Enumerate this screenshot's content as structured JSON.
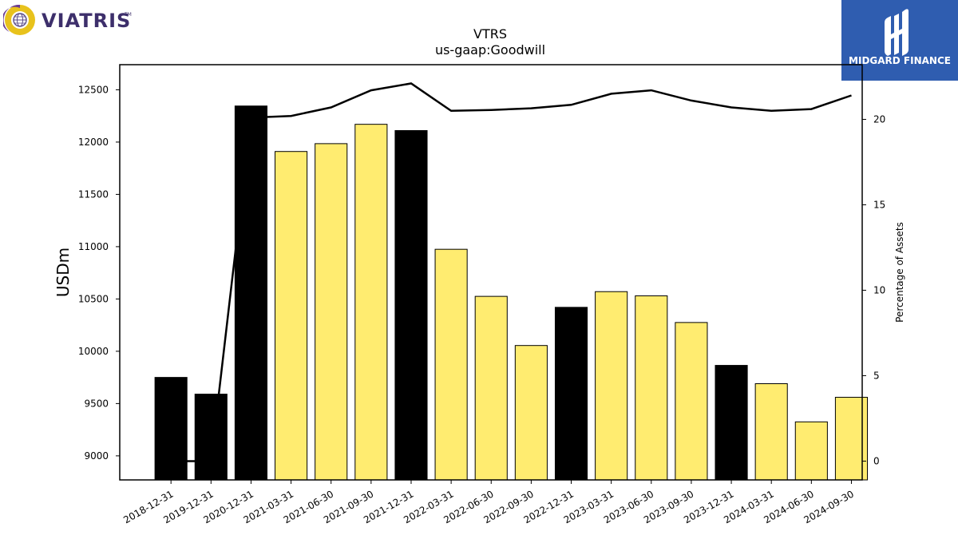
{
  "brand": {
    "company_logo_text": "VIATRIS",
    "company_logo_tm": "TM",
    "publisher_logo_text": "MIDGARD FINANCE",
    "publisher_color": "#2f5db0"
  },
  "chart_data": {
    "type": "bar",
    "title": "VTRS",
    "subtitle": "us-gaap:Goodwill",
    "ylabel": "USDm",
    "y2label": "Percentage of Assets",
    "ylim": [
      8770,
      12740
    ],
    "y2lim": [
      -1.1,
      23.2
    ],
    "yticks": [
      9000,
      9500,
      10000,
      10500,
      11000,
      11500,
      12000,
      12500
    ],
    "y2ticks": [
      0,
      5,
      10,
      15,
      20
    ],
    "categories": [
      "2018-12-31",
      "2019-12-31",
      "2020-12-31",
      "2021-03-31",
      "2021-06-30",
      "2021-09-30",
      "2021-12-31",
      "2022-03-31",
      "2022-06-30",
      "2022-09-30",
      "2022-12-31",
      "2023-03-31",
      "2023-06-30",
      "2023-09-30",
      "2023-12-31",
      "2024-03-31",
      "2024-06-30",
      "2024-09-30"
    ],
    "series": [
      {
        "kind": "bar",
        "values": [
          9750,
          9590,
          12345,
          11910,
          11985,
          12170,
          12110,
          10975,
          10525,
          10055,
          10420,
          10570,
          10530,
          10275,
          9865,
          9690,
          9325,
          9560
        ],
        "colors": [
          "#000000",
          "#000000",
          "#000000",
          "#ffec70",
          "#ffec70",
          "#ffec70",
          "#000000",
          "#ffec70",
          "#ffec70",
          "#ffec70",
          "#000000",
          "#ffec70",
          "#ffec70",
          "#ffec70",
          "#000000",
          "#ffec70",
          "#ffec70",
          "#ffec70"
        ]
      },
      {
        "kind": "line",
        "axis": "right",
        "color": "#000000",
        "values": [
          0.0,
          0.0,
          20.1,
          20.2,
          20.7,
          21.7,
          22.1,
          20.5,
          20.55,
          20.65,
          20.85,
          21.5,
          21.7,
          21.1,
          20.7,
          20.5,
          20.6,
          21.4
        ]
      }
    ],
    "grid": false,
    "legend": "none"
  }
}
